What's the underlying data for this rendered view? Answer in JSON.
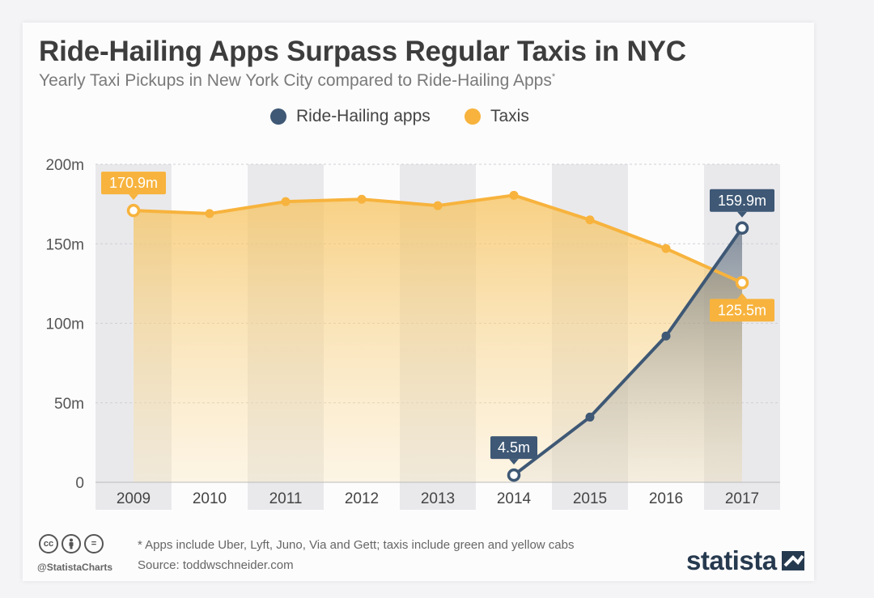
{
  "title": "Ride-Hailing Apps Surpass Regular Taxis in NYC",
  "subtitle": "Yearly Taxi Pickups in New York City compared to Ride-Hailing Apps",
  "subtitle_mark": "*",
  "colors": {
    "ride_hailing": "#3e5875",
    "taxis": "#f7b33d",
    "band": "#e9e9ec",
    "text": "#3d3d3d"
  },
  "chart_data": {
    "type": "line",
    "x": [
      "2009",
      "2010",
      "2011",
      "2012",
      "2013",
      "2014",
      "2015",
      "2016",
      "2017"
    ],
    "y_ticks": [
      "0",
      "50m",
      "100m",
      "150m",
      "200m"
    ],
    "y_tick_values": [
      0,
      50,
      100,
      150,
      200
    ],
    "ylim": [
      0,
      200
    ],
    "unit": "m",
    "legend_position": "top-center",
    "series": [
      {
        "name": "Ride-Hailing apps",
        "color": "#3e5875",
        "values": [
          null,
          null,
          null,
          null,
          null,
          4.5,
          41,
          92,
          159.9
        ]
      },
      {
        "name": "Taxis",
        "color": "#f7b33d",
        "values": [
          170.9,
          169,
          176.5,
          178,
          174,
          180.5,
          165,
          147,
          125.5
        ]
      }
    ],
    "annotations": [
      {
        "series": 1,
        "index": 0,
        "text": "170.9m",
        "placement": "above"
      },
      {
        "series": 1,
        "index": 8,
        "text": "125.5m",
        "placement": "below"
      },
      {
        "series": 0,
        "index": 5,
        "text": "4.5m",
        "placement": "above"
      },
      {
        "series": 0,
        "index": 8,
        "text": "159.9m",
        "placement": "above"
      }
    ]
  },
  "footer": {
    "cc_icons": [
      "cc",
      "by",
      "="
    ],
    "handle": "@StatistaCharts",
    "footnote": "* Apps include Uber, Lyft, Juno, Via and Gett; taxis include green and yellow cabs",
    "source": "Source: toddwschneider.com",
    "logo": "statista"
  }
}
